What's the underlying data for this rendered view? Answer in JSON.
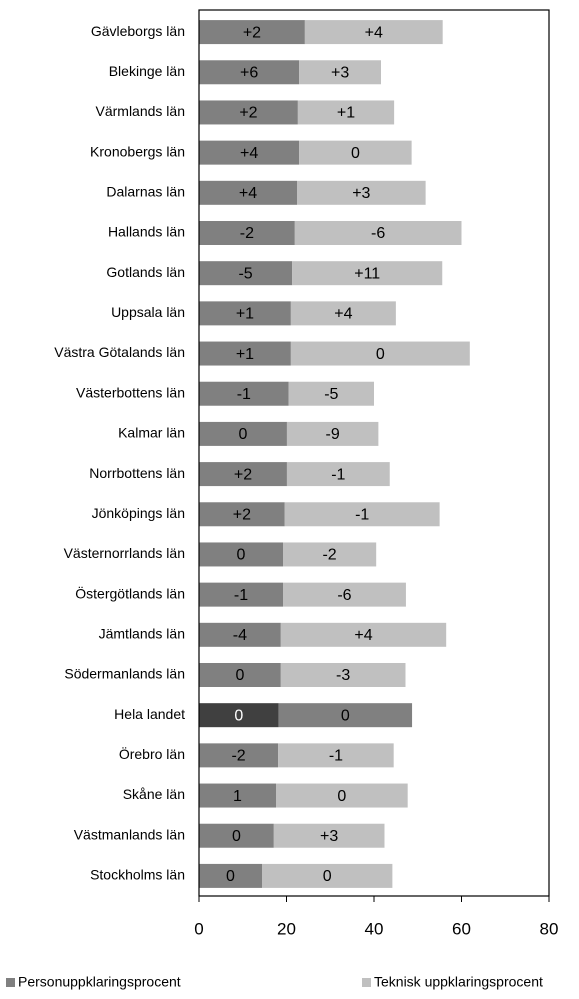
{
  "chart_data": {
    "type": "stacked_bar_horizontal",
    "categories": [
      "Gävleborgs län",
      "Blekinge län",
      "Värmlands län",
      "Kronobergs län",
      "Dalarnas län",
      "Hallands län",
      "Gotlands län",
      "Uppsala län",
      "Västra Götalands län",
      "Västerbottens län",
      "Kalmar län",
      "Norrbottens län",
      "Jönköpings län",
      "Västernorrlands län",
      "Östergötlands län",
      "Jämtlands län",
      "Södermanlands län",
      "Hela landet",
      "Örebro län",
      "Skåne län",
      "Västmanlands län",
      "Stockholms län"
    ],
    "series": [
      {
        "name": "Personuppklaringsprocent",
        "color": "#808080",
        "colors": [
          "#808080",
          "#808080",
          "#808080",
          "#808080",
          "#808080",
          "#808080",
          "#808080",
          "#808080",
          "#808080",
          "#808080",
          "#808080",
          "#808080",
          "#808080",
          "#808080",
          "#808080",
          "#808080",
          "#808080",
          "#404040",
          "#808080",
          "#808080",
          "#808080",
          "#808080"
        ],
        "values": [
          24.2,
          22.9,
          22.6,
          22.9,
          22.4,
          21.9,
          21.3,
          21.0,
          21.0,
          20.5,
          20.1,
          20.1,
          19.6,
          19.2,
          19.2,
          18.7,
          18.7,
          18.2,
          18.1,
          17.6,
          17.1,
          14.4
        ],
        "annotations": [
          "+2",
          "+6",
          "+2",
          "+4",
          "+4",
          "-2",
          "-5",
          "+1",
          "+1",
          "-1",
          "0",
          "+2",
          "+2",
          "0",
          "-1",
          "-4",
          "0",
          "0",
          "-2",
          "1",
          "0",
          "0"
        ]
      },
      {
        "name": "Teknisk uppklaringsprocent",
        "color": "#c0c0c0",
        "colors": [
          "#c0c0c0",
          "#c0c0c0",
          "#c0c0c0",
          "#c0c0c0",
          "#c0c0c0",
          "#c0c0c0",
          "#c0c0c0",
          "#c0c0c0",
          "#c0c0c0",
          "#c0c0c0",
          "#c0c0c0",
          "#c0c0c0",
          "#c0c0c0",
          "#c0c0c0",
          "#c0c0c0",
          "#c0c0c0",
          "#c0c0c0",
          "#808080",
          "#c0c0c0",
          "#c0c0c0",
          "#c0c0c0",
          "#c0c0c0"
        ],
        "values": [
          31.5,
          18.7,
          22.0,
          25.7,
          29.4,
          38.1,
          34.3,
          24.0,
          40.9,
          19.5,
          20.9,
          23.5,
          35.4,
          21.3,
          28.1,
          37.8,
          28.5,
          30.5,
          26.4,
          30.1,
          25.3,
          29.8
        ],
        "annotations": [
          "+4",
          "+3",
          "+1",
          "0",
          "+3",
          "-6",
          "+11",
          "+4",
          "0",
          "-5",
          "-9",
          "-1",
          "-1",
          "-2",
          "-6",
          "+4",
          "-3",
          "0",
          "-1",
          "0",
          "+3",
          "0"
        ]
      }
    ],
    "xlim": [
      0,
      80
    ],
    "xticks": [
      0,
      20,
      40,
      60,
      80
    ],
    "legend": "bottom"
  }
}
